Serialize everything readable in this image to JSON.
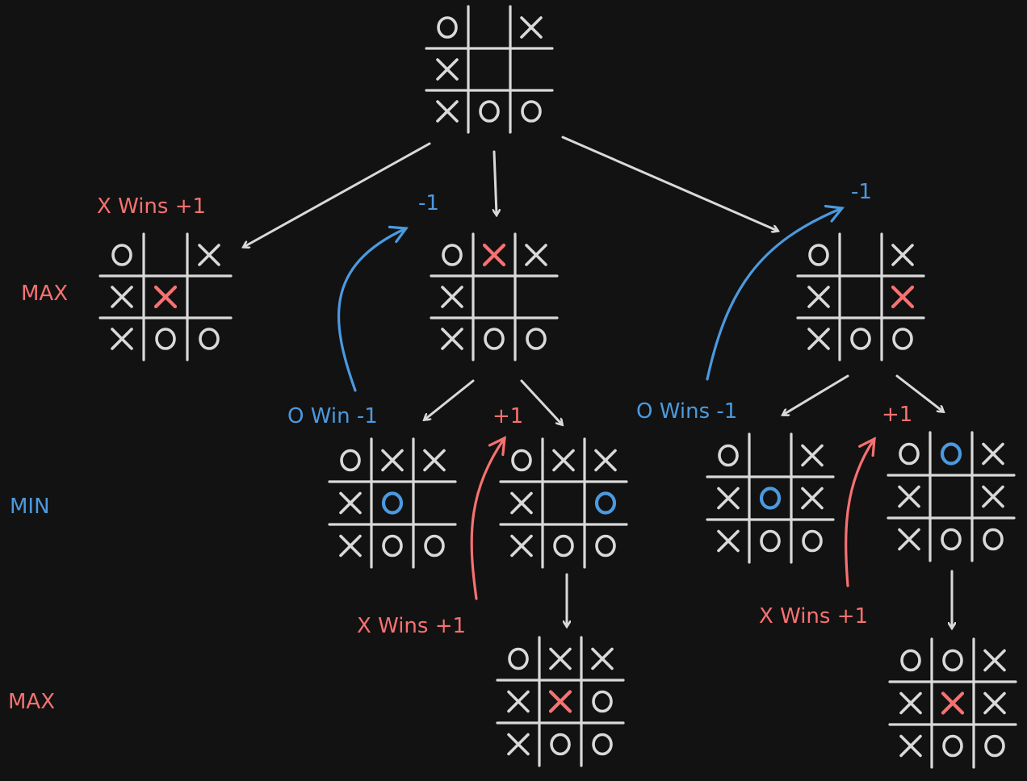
{
  "colors": {
    "background": "#121212",
    "line": "#d9d9d9",
    "max": "#f87171",
    "min": "#4b9ae0"
  },
  "levels": [
    {
      "id": "level-max-1",
      "label": "MAX",
      "color": "max"
    },
    {
      "id": "level-min",
      "label": "MIN",
      "color": "min"
    },
    {
      "id": "level-max-2",
      "label": "MAX",
      "color": "max"
    }
  ],
  "boards": [
    {
      "id": "root",
      "cells": [
        "O",
        "",
        "X",
        "X",
        "",
        "",
        "X",
        "O",
        "O"
      ],
      "hi": -1
    },
    {
      "id": "left",
      "cells": [
        "O",
        "",
        "X",
        "X",
        "X",
        "",
        "X",
        "O",
        "O"
      ],
      "hi": 4
    },
    {
      "id": "mid",
      "cells": [
        "O",
        "X",
        "X",
        "X",
        "",
        "",
        "X",
        "O",
        "O"
      ],
      "hi": 1
    },
    {
      "id": "right",
      "cells": [
        "O",
        "",
        "X",
        "X",
        "",
        "X",
        "X",
        "O",
        "O"
      ],
      "hi": 5
    },
    {
      "id": "mid-left",
      "cells": [
        "O",
        "X",
        "X",
        "X",
        "O",
        "",
        "X",
        "O",
        "O"
      ],
      "hi": 4
    },
    {
      "id": "mid-right",
      "cells": [
        "O",
        "X",
        "X",
        "X",
        "",
        "O",
        "X",
        "O",
        "O"
      ],
      "hi": 5
    },
    {
      "id": "right-left",
      "cells": [
        "O",
        "",
        "X",
        "X",
        "O",
        "X",
        "X",
        "O",
        "O"
      ],
      "hi": 4
    },
    {
      "id": "right-right",
      "cells": [
        "O",
        "O",
        "X",
        "X",
        "",
        "X",
        "X",
        "O",
        "O"
      ],
      "hi": 1
    },
    {
      "id": "mid-right-child",
      "cells": [
        "O",
        "X",
        "X",
        "X",
        "X",
        "O",
        "X",
        "O",
        "O"
      ],
      "hi": 4
    },
    {
      "id": "right-right-child",
      "cells": [
        "O",
        "O",
        "X",
        "X",
        "X",
        "X",
        "X",
        "O",
        "O"
      ],
      "hi": 4
    }
  ],
  "labels": [
    {
      "id": "left-result",
      "text": "X Wins +1",
      "color": "max"
    },
    {
      "id": "mid-score",
      "text": "-1",
      "color": "min"
    },
    {
      "id": "right-score",
      "text": "-1",
      "color": "min"
    },
    {
      "id": "mid-left-result",
      "text": "O Win -1",
      "color": "min"
    },
    {
      "id": "mid-right-score",
      "text": "+1",
      "color": "max"
    },
    {
      "id": "right-left-result",
      "text": "O Wins -1",
      "color": "min"
    },
    {
      "id": "right-right-score",
      "text": "+1",
      "color": "max"
    },
    {
      "id": "mid-right-child-result",
      "text": "X Wins +1",
      "color": "max"
    },
    {
      "id": "right-right-child-result",
      "text": "X Wins +1",
      "color": "max"
    }
  ]
}
